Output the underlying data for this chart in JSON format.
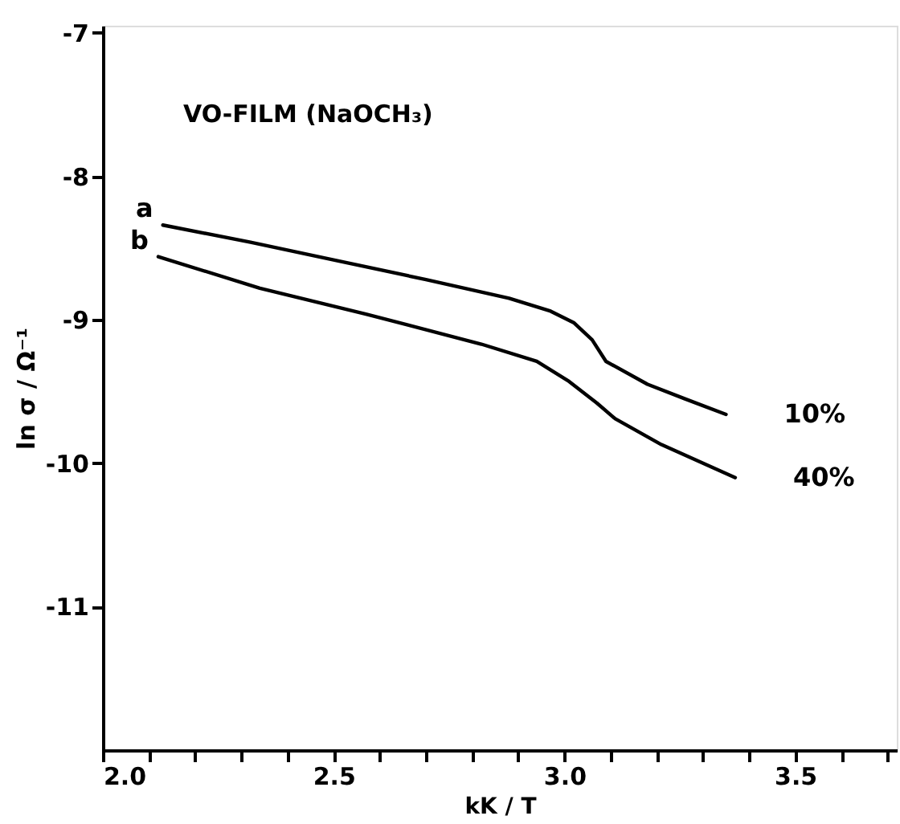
{
  "chart_data": {
    "type": "line",
    "title": "VO-FILM (NaOCH₃)",
    "xlabel": "kK / T",
    "ylabel": "ln σ / Ω⁻¹",
    "xlim": [
      2.0,
      3.72
    ],
    "ylim": [
      -12,
      -6.95
    ],
    "xticks": [
      {
        "value": 2.0,
        "label": "2.0"
      },
      {
        "value": 2.1,
        "label": null
      },
      {
        "value": 2.2,
        "label": null
      },
      {
        "value": 2.3,
        "label": null
      },
      {
        "value": 2.4,
        "label": null
      },
      {
        "value": 2.5,
        "label": "2.5"
      },
      {
        "value": 2.6,
        "label": null
      },
      {
        "value": 2.7,
        "label": null
      },
      {
        "value": 2.8,
        "label": null
      },
      {
        "value": 2.9,
        "label": null
      },
      {
        "value": 3.0,
        "label": "3.0"
      },
      {
        "value": 3.1,
        "label": null
      },
      {
        "value": 3.2,
        "label": null
      },
      {
        "value": 3.3,
        "label": null
      },
      {
        "value": 3.4,
        "label": null
      },
      {
        "value": 3.5,
        "label": "3.5"
      },
      {
        "value": 3.6,
        "label": null
      },
      {
        "value": 3.7,
        "label": null
      }
    ],
    "yticks": [
      -7,
      -8,
      -9,
      -10,
      -11
    ],
    "grid": false,
    "legend": false,
    "marker": "none",
    "line_style": "solid",
    "series": [
      {
        "name": "a",
        "color": "#000000",
        "x": [
          2.13,
          2.32,
          2.51,
          2.7,
          2.88,
          2.97,
          3.02,
          3.06,
          3.09,
          3.18,
          3.26,
          3.35
        ],
        "values": [
          -8.34,
          -8.46,
          -8.59,
          -8.72,
          -8.85,
          -8.94,
          -9.02,
          -9.14,
          -9.29,
          -9.45,
          -9.55,
          -9.66
        ]
      },
      {
        "name": "b",
        "color": "#000000",
        "x": [
          2.12,
          2.34,
          2.57,
          2.82,
          2.94,
          3.01,
          3.07,
          3.11,
          3.21,
          3.37
        ],
        "values": [
          -8.56,
          -8.78,
          -8.96,
          -9.17,
          -9.29,
          -9.43,
          -9.58,
          -9.69,
          -9.87,
          -10.1
        ]
      }
    ],
    "annotations": [
      {
        "text": "10%",
        "x": 3.35,
        "y": -9.66
      },
      {
        "text": "40%",
        "x": 3.37,
        "y": -10.1
      }
    ]
  }
}
